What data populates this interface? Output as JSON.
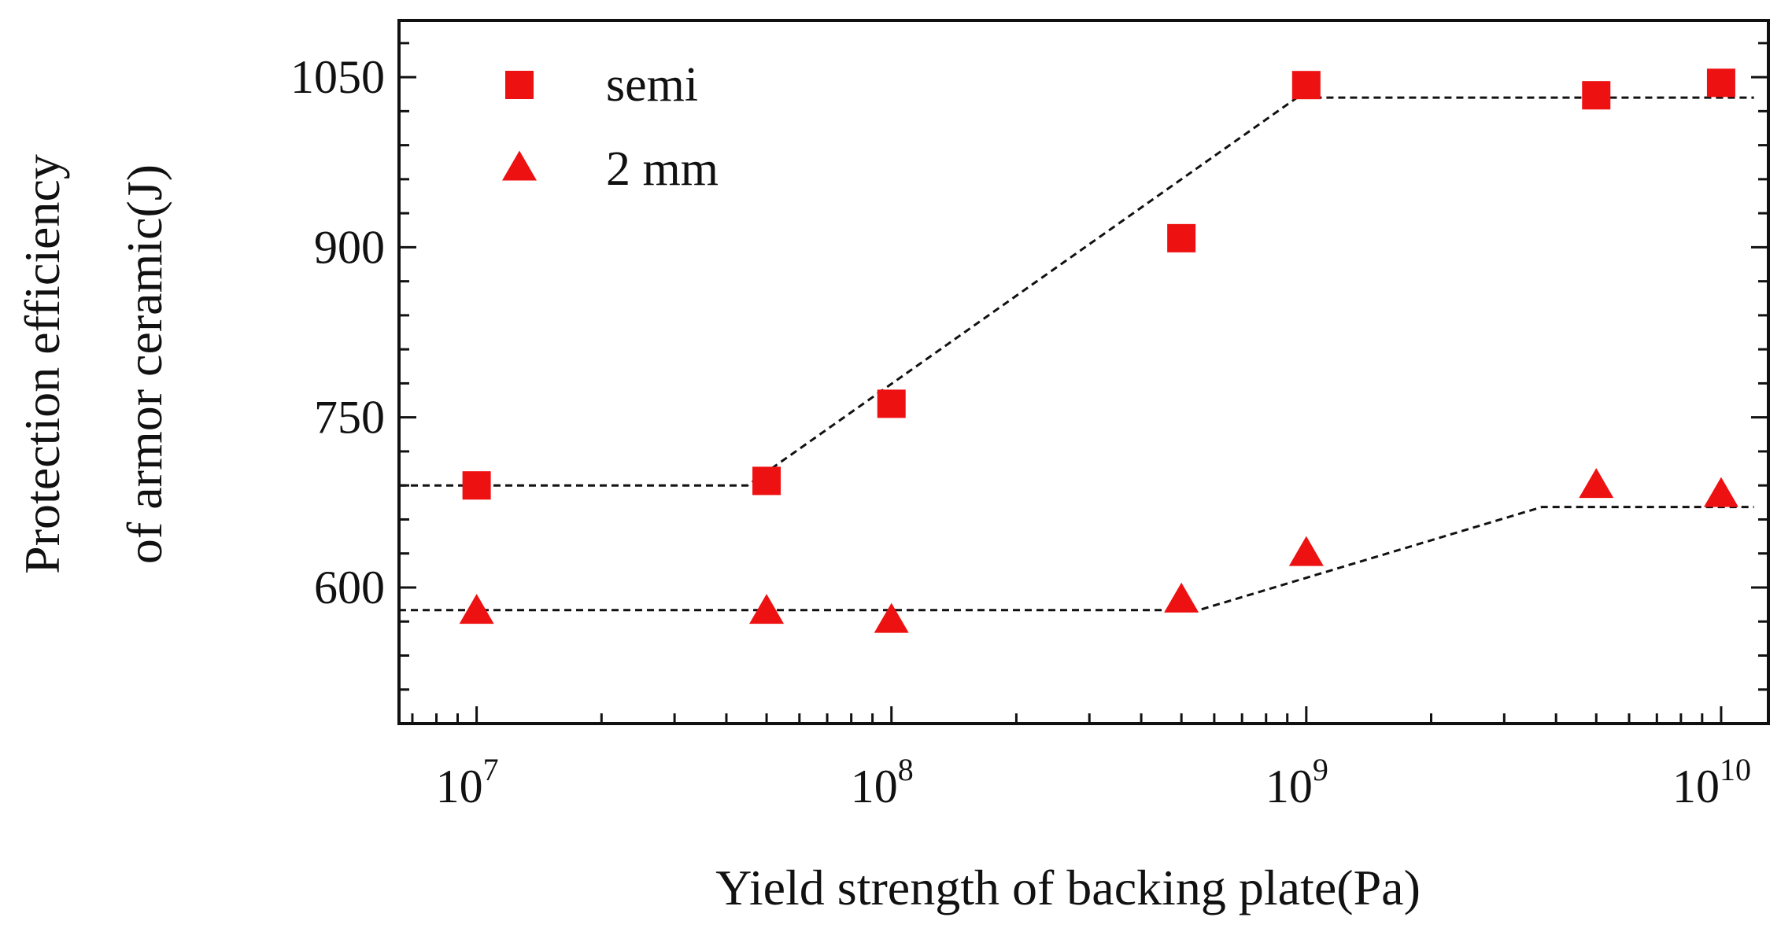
{
  "chart_data": {
    "type": "scatter",
    "title": "",
    "xlabel": "Yield strength of backing plate(Pa)",
    "ylabel": [
      "Protection efficiency",
      "of armor ceramic(J)"
    ],
    "xscale": "log",
    "xlim": [
      6500000,
      13000000000
    ],
    "ylim": [
      480,
      1100
    ],
    "xticks": [
      {
        "value": 10000000,
        "base": "10",
        "exp": "7"
      },
      {
        "value": 100000000,
        "base": "10",
        "exp": "8"
      },
      {
        "value": 1000000000,
        "base": "10",
        "exp": "9"
      },
      {
        "value": 10000000000,
        "base": "10",
        "exp": "10"
      }
    ],
    "yticks": [
      600,
      750,
      900,
      1050
    ],
    "legend_position": "top-left",
    "marker_color": "#ee1111",
    "series": [
      {
        "name": "semi",
        "marker": "square",
        "x": [
          10000000,
          50000000,
          100000000,
          500000000,
          1000000000,
          5000000000,
          10000000000
        ],
        "y": [
          690,
          694,
          762,
          908,
          1043,
          1034,
          1045
        ]
      },
      {
        "name": "2 mm",
        "marker": "triangle",
        "x": [
          10000000,
          50000000,
          100000000,
          500000000,
          1000000000,
          5000000000,
          10000000000
        ],
        "y": [
          578,
          578,
          570,
          588,
          629,
          689,
          681
        ]
      }
    ],
    "fit_lines": [
      {
        "series": "semi",
        "style": "dashed",
        "points": [
          [
            6500000,
            690
          ],
          [
            45000000,
            690
          ],
          [
            950000000,
            1032
          ],
          [
            12000000000,
            1032
          ]
        ]
      },
      {
        "series": "2 mm",
        "style": "dashed",
        "points": [
          [
            6500000,
            580
          ],
          [
            550000000,
            580
          ],
          [
            3700000000,
            671
          ],
          [
            12000000000,
            671
          ]
        ]
      }
    ]
  }
}
